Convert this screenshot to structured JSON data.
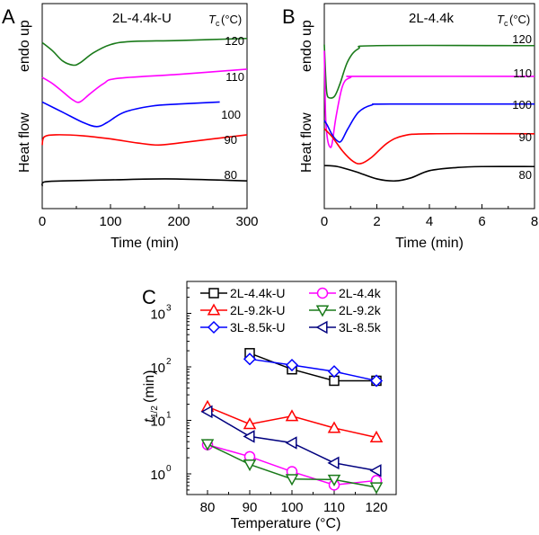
{
  "chart_data": [
    {
      "panel_label": "A",
      "type": "line",
      "title": "2L-4.4k-U",
      "xlabel": "Time (min)",
      "ylabel": "Heat flow",
      "ylabel_extra": "endo up",
      "legend_title": "Tc(°C)",
      "xlim": [
        0,
        300
      ],
      "x_ticks": [
        0,
        100,
        200,
        300
      ],
      "y_ticks_shown": false,
      "series": [
        {
          "name": "120",
          "color": "#1a7a1a",
          "offset": 0.81,
          "points": [
            [
              0,
              0.81
            ],
            [
              15,
              0.77
            ],
            [
              30,
              0.72
            ],
            [
              45,
              0.7
            ],
            [
              55,
              0.71
            ],
            [
              75,
              0.76
            ],
            [
              100,
              0.8
            ],
            [
              130,
              0.815
            ],
            [
              200,
              0.82
            ],
            [
              300,
              0.83
            ]
          ]
        },
        {
          "name": "110",
          "color": "#ff00ff",
          "offset": 0.64,
          "points": [
            [
              0,
              0.64
            ],
            [
              15,
              0.61
            ],
            [
              30,
              0.57
            ],
            [
              45,
              0.53
            ],
            [
              55,
              0.52
            ],
            [
              70,
              0.56
            ],
            [
              90,
              0.61
            ],
            [
              110,
              0.635
            ],
            [
              200,
              0.655
            ],
            [
              300,
              0.68
            ]
          ]
        },
        {
          "name": "100",
          "color": "#0000ff",
          "offset": 0.52,
          "points": [
            [
              0,
              0.52
            ],
            [
              30,
              0.47
            ],
            [
              60,
              0.42
            ],
            [
              80,
              0.4
            ],
            [
              95,
              0.42
            ],
            [
              120,
              0.47
            ],
            [
              160,
              0.5
            ],
            [
              200,
              0.51
            ],
            [
              260,
              0.52
            ]
          ]
        },
        {
          "name": "90",
          "color": "#ff0000",
          "offset": 0.32,
          "points": [
            [
              0,
              0.31
            ],
            [
              3,
              0.35
            ],
            [
              20,
              0.36
            ],
            [
              60,
              0.355
            ],
            [
              100,
              0.34
            ],
            [
              140,
              0.32
            ],
            [
              170,
              0.31
            ],
            [
              200,
              0.32
            ],
            [
              250,
              0.34
            ],
            [
              300,
              0.36
            ]
          ]
        },
        {
          "name": "80",
          "color": "#000000",
          "offset": 0.12,
          "points": [
            [
              0,
              0.11
            ],
            [
              3,
              0.13
            ],
            [
              30,
              0.135
            ],
            [
              100,
              0.14
            ],
            [
              180,
              0.145
            ],
            [
              250,
              0.14
            ],
            [
              300,
              0.135
            ]
          ]
        }
      ]
    },
    {
      "panel_label": "B",
      "type": "line",
      "title": "2L-4.4k",
      "xlabel": "Time (min)",
      "ylabel": "Heat flow",
      "ylabel_extra": "endo up",
      "legend_title": "Tc(°C)",
      "xlim": [
        0,
        8
      ],
      "x_ticks": [
        0,
        2,
        4,
        6,
        8
      ],
      "y_ticks_shown": false,
      "series": [
        {
          "name": "120",
          "color": "#1a7a1a",
          "points": [
            [
              0,
              0.8
            ],
            [
              0.05,
              0.65
            ],
            [
              0.1,
              0.56
            ],
            [
              0.2,
              0.54
            ],
            [
              0.4,
              0.55
            ],
            [
              0.6,
              0.61
            ],
            [
              0.9,
              0.72
            ],
            [
              1.3,
              0.78
            ],
            [
              2,
              0.795
            ],
            [
              8,
              0.795
            ]
          ]
        },
        {
          "name": "110",
          "color": "#ff00ff",
          "points": [
            [
              0,
              0.77
            ],
            [
              0.05,
              0.45
            ],
            [
              0.12,
              0.34
            ],
            [
              0.22,
              0.3
            ],
            [
              0.3,
              0.32
            ],
            [
              0.45,
              0.45
            ],
            [
              0.7,
              0.6
            ],
            [
              1.0,
              0.64
            ],
            [
              1.5,
              0.645
            ],
            [
              8,
              0.645
            ]
          ]
        },
        {
          "name": "100",
          "color": "#0000ff",
          "points": [
            [
              0,
              0.43
            ],
            [
              0.1,
              0.41
            ],
            [
              0.3,
              0.36
            ],
            [
              0.5,
              0.33
            ],
            [
              0.65,
              0.33
            ],
            [
              0.9,
              0.39
            ],
            [
              1.3,
              0.47
            ],
            [
              1.8,
              0.505
            ],
            [
              2.5,
              0.51
            ],
            [
              8,
              0.51
            ]
          ]
        },
        {
          "name": "90",
          "color": "#ff0000",
          "points": [
            [
              0,
              0.39
            ],
            [
              0.3,
              0.35
            ],
            [
              0.7,
              0.28
            ],
            [
              1.1,
              0.23
            ],
            [
              1.4,
              0.22
            ],
            [
              1.8,
              0.25
            ],
            [
              2.4,
              0.32
            ],
            [
              3,
              0.355
            ],
            [
              4,
              0.365
            ],
            [
              8,
              0.365
            ]
          ]
        },
        {
          "name": "80",
          "color": "#000000",
          "points": [
            [
              0,
              0.21
            ],
            [
              0.5,
              0.205
            ],
            [
              1.2,
              0.18
            ],
            [
              2,
              0.145
            ],
            [
              2.7,
              0.135
            ],
            [
              3.3,
              0.15
            ],
            [
              4,
              0.185
            ],
            [
              5,
              0.2
            ],
            [
              6,
              0.205
            ],
            [
              8,
              0.205
            ]
          ]
        }
      ]
    },
    {
      "panel_label": "C",
      "type": "line",
      "xlabel": "Temperature (°C)",
      "ylabel": "t1/2 (min)",
      "yscale": "log",
      "xlim": [
        75,
        125
      ],
      "ylim": [
        0.4,
        4000
      ],
      "x_ticks": [
        80,
        90,
        100,
        110,
        120
      ],
      "y_ticks": [
        "10^0",
        "10^1",
        "10^2",
        "10^3"
      ],
      "legend_placement": "top",
      "series": [
        {
          "name": "2L-4.4k-U",
          "color": "#000000",
          "marker": "square",
          "x": [
            90,
            100,
            110,
            120
          ],
          "values": [
            180,
            90,
            55,
            55
          ]
        },
        {
          "name": "2L-4.4k",
          "color": "#ff00ff",
          "marker": "circle",
          "x": [
            80,
            90,
            100,
            110,
            120
          ],
          "values": [
            3.5,
            2.1,
            1.1,
            0.62,
            0.75
          ]
        },
        {
          "name": "2L-9.2k-U",
          "color": "#ff0000",
          "marker": "triangle-up",
          "x": [
            80,
            90,
            100,
            110,
            120
          ],
          "values": [
            18,
            8.5,
            12,
            7.2,
            4.8
          ]
        },
        {
          "name": "2L-9.2k",
          "color": "#1a7a1a",
          "marker": "triangle-down",
          "x": [
            80,
            90,
            100,
            110,
            120
          ],
          "values": [
            3.6,
            1.5,
            0.8,
            0.78,
            0.56
          ]
        },
        {
          "name": "3L-8.5k-U",
          "color": "#0000ff",
          "marker": "diamond",
          "x": [
            90,
            100,
            110,
            120
          ],
          "values": [
            140,
            108,
            82,
            55
          ]
        },
        {
          "name": "3L-8.5k",
          "color": "#00007f",
          "marker": "triangle-left",
          "x": [
            80,
            90,
            100,
            110,
            120
          ],
          "values": [
            14.5,
            5.0,
            3.8,
            1.6,
            1.15
          ]
        }
      ]
    }
  ]
}
